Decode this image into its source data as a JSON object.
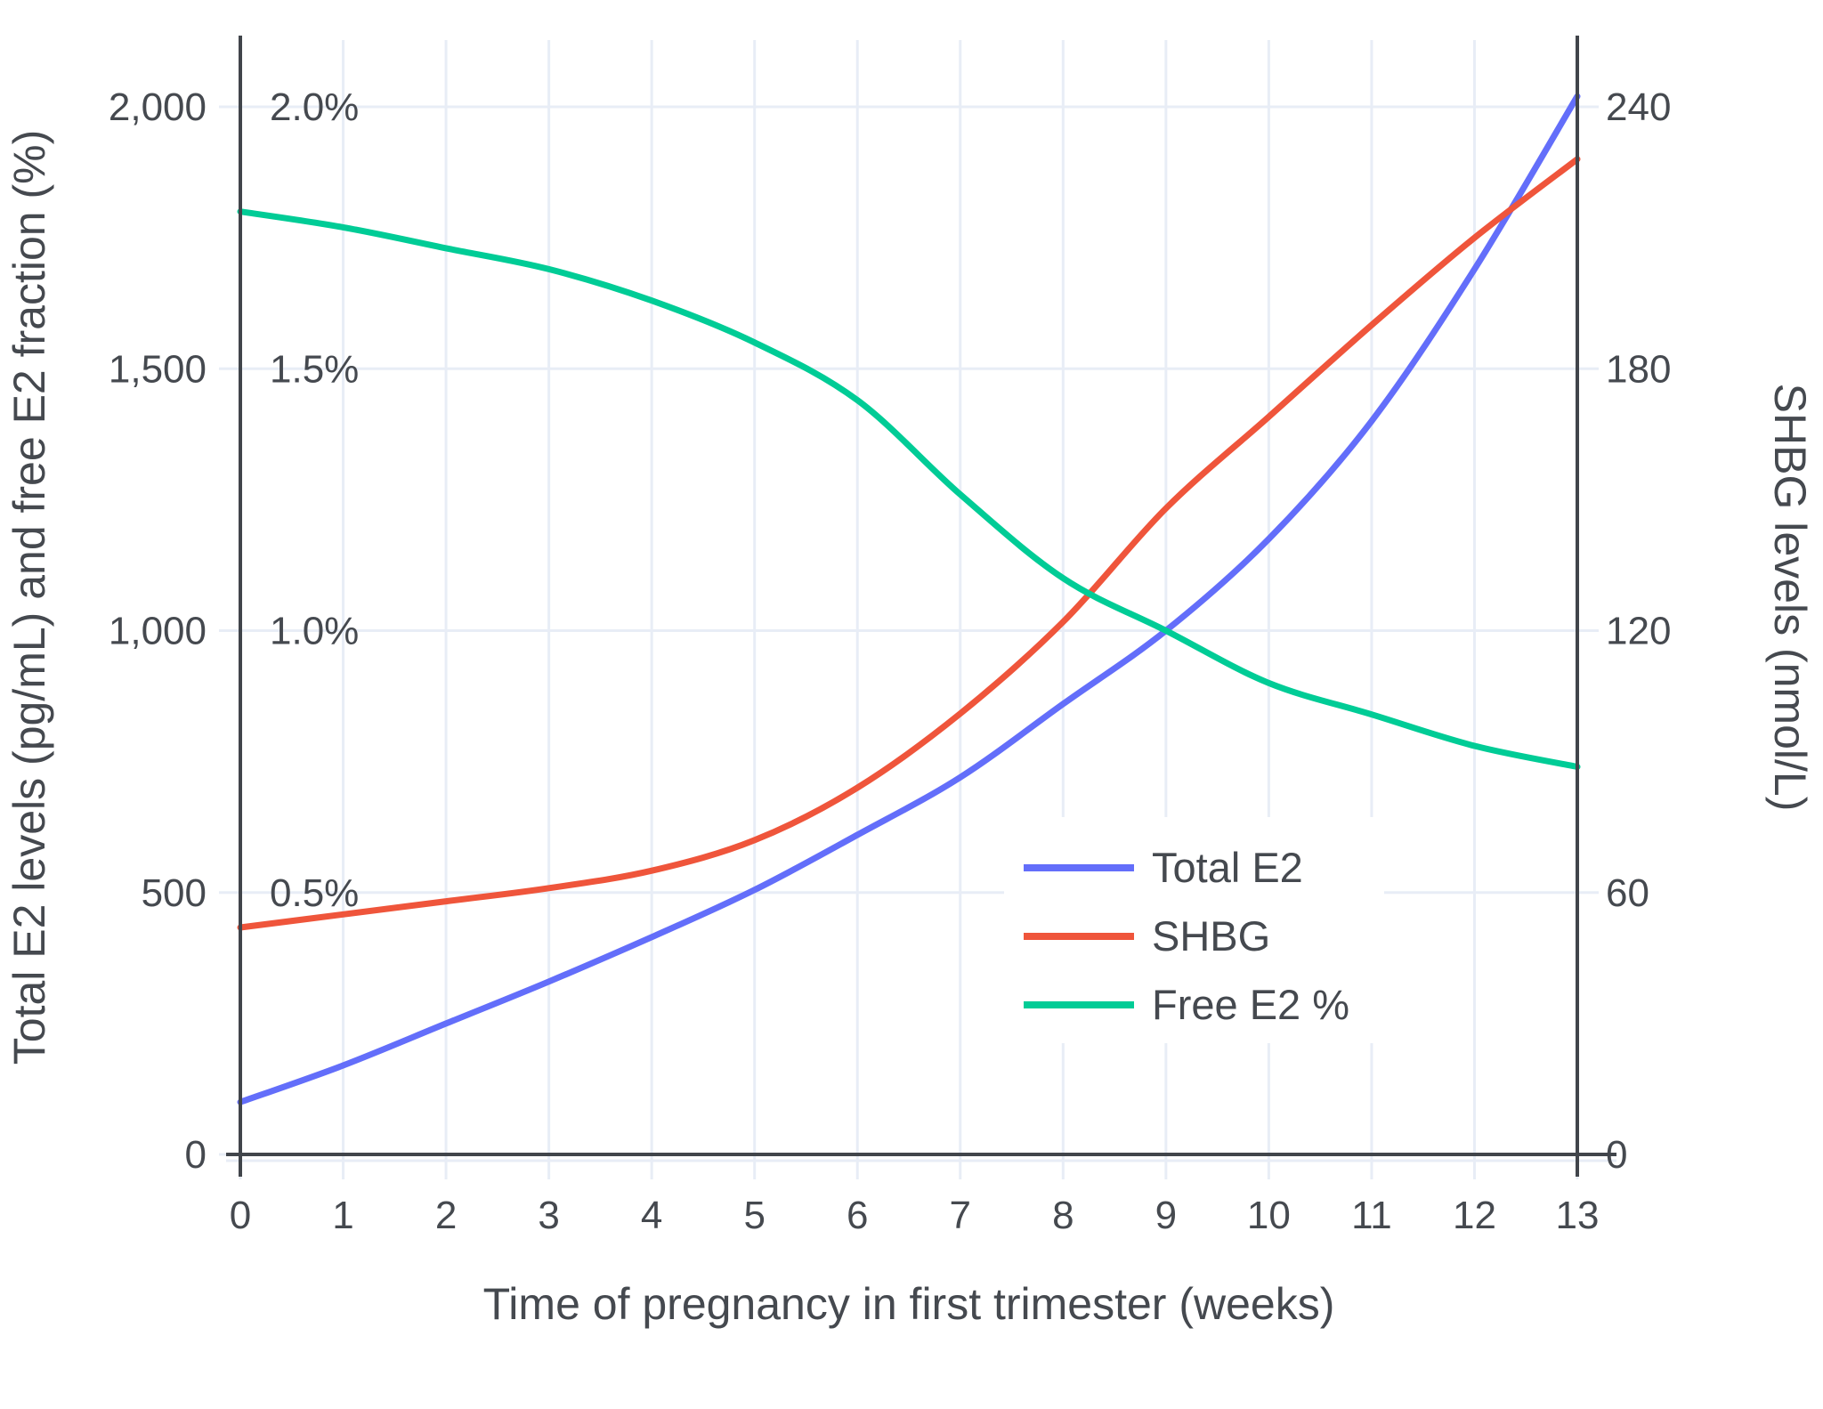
{
  "chart_data": {
    "type": "line",
    "title": "",
    "xlabel": "Time of pregnancy in first trimester (weeks)",
    "ylabel_left": "Total E2 levels (pg/mL) and free E2 fraction (%)",
    "ylabel_right": "SHBG levels (nmol/L)",
    "x": [
      0,
      1,
      2,
      3,
      4,
      5,
      6,
      7,
      8,
      9,
      10,
      11,
      12,
      13
    ],
    "x_tick_labels": [
      "0",
      "1",
      "2",
      "3",
      "4",
      "5",
      "6",
      "7",
      "8",
      "9",
      "10",
      "11",
      "12",
      "13"
    ],
    "left_axis": {
      "tick_labels": [
        "0",
        "500",
        "1,000",
        "1,500",
        "2,000"
      ],
      "tick_values": [
        0,
        500,
        1000,
        1500,
        2000
      ],
      "range": [
        0,
        2128
      ]
    },
    "percent_labels": [
      {
        "label": "0.5%",
        "value": 0.5
      },
      {
        "label": "1.0%",
        "value": 1.0
      },
      {
        "label": "1.5%",
        "value": 1.5
      },
      {
        "label": "2.0%",
        "value": 2.0
      }
    ],
    "right_axis": {
      "tick_labels": [
        "0",
        "60",
        "120",
        "180",
        "240"
      ],
      "tick_values": [
        0,
        60,
        120,
        180,
        240
      ],
      "range": [
        0,
        255
      ]
    },
    "series": [
      {
        "name": "Total E2",
        "color": "#636EFA",
        "axis": "left",
        "unit": "pg/mL",
        "values": [
          100,
          170,
          250,
          330,
          415,
          505,
          610,
          720,
          860,
          1000,
          1175,
          1400,
          1690,
          2020
        ]
      },
      {
        "name": "SHBG",
        "color": "#EF553B",
        "axis": "right",
        "unit": "nmol/L",
        "values": [
          52,
          55,
          58,
          61,
          65,
          72,
          84,
          101,
          122,
          148,
          169,
          190,
          210,
          228
        ]
      },
      {
        "name": "Free E2 %",
        "color": "#00CC96",
        "axis": "left_percent",
        "unit": "%",
        "values": [
          1.8,
          1.77,
          1.73,
          1.69,
          1.63,
          1.55,
          1.44,
          1.26,
          1.1,
          1.0,
          0.9,
          0.84,
          0.78,
          0.74
        ]
      }
    ],
    "legend": {
      "position": "inside-right-middle",
      "entries": [
        "Total E2",
        "SHBG",
        "Free E2 %"
      ]
    },
    "grid": true,
    "colors": {
      "background": "#ffffff",
      "grid": "#e8edf6",
      "axis_line": "#41454b",
      "text": "#45494f"
    }
  }
}
